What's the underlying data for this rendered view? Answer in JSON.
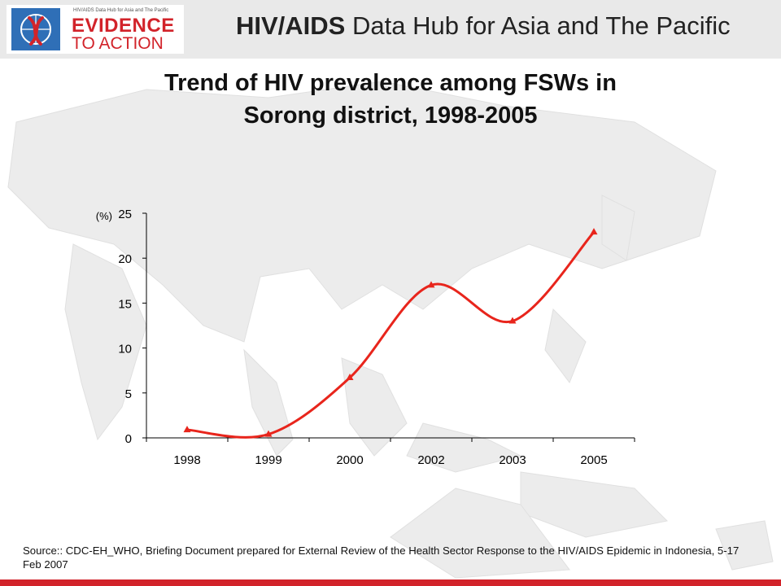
{
  "header": {
    "logo_small_text": "HIV/AIDS Data Hub for Asia and The Pacific",
    "logo_line1": "EVIDENCE",
    "logo_line2": "TO ACTION",
    "title_bold": "HIV/AIDS",
    "title_rest": " Data Hub for Asia and The Pacific"
  },
  "slide": {
    "title_line1": "Trend of HIV prevalence among FSWs in",
    "title_line2": "Sorong district, 1998-2005"
  },
  "chart_data": {
    "type": "line",
    "title": "Trend of HIV prevalence among FSWs in Sorong district, 1998-2005",
    "ylabel": "(%)",
    "xlabel": "",
    "categories": [
      "1998",
      "1999",
      "2000",
      "2002",
      "2003",
      "2005"
    ],
    "series": [
      {
        "values": [
          0.9,
          0.4,
          6.7,
          17.0,
          13.0,
          22.9
        ],
        "color": "#e8251c"
      }
    ],
    "ylim": [
      0,
      25
    ],
    "yticks": [
      0,
      5,
      10,
      15,
      20,
      25
    ],
    "grid": false,
    "smooth": true,
    "marker": "triangle"
  },
  "source": "Source:: CDC-EH_WHO, Briefing Document prepared for External Review of the Health Sector Response to the HIV/AIDS Epidemic in Indonesia, 5-17 Feb 2007",
  "colors": {
    "accent": "#d2232a",
    "series": "#e8251c",
    "header_bg": "#e9e9e9"
  }
}
